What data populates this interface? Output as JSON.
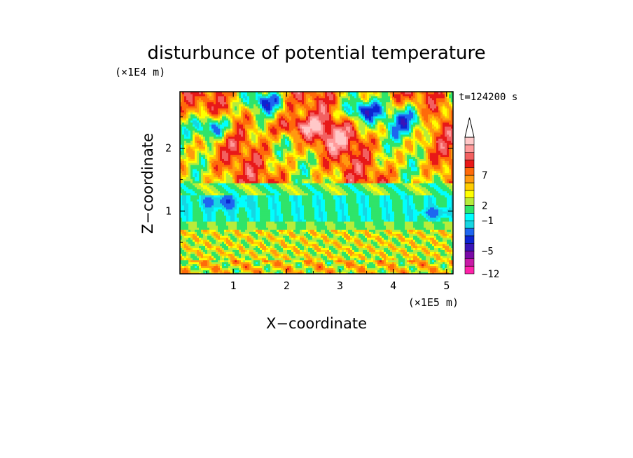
{
  "chart_data": {
    "type": "heatmap",
    "title": "disturbunce of potential temperature",
    "time_label": "t=124200 s",
    "xlabel": "X−coordinate",
    "ylabel": "Z−coordinate",
    "x_scale_label": "(×1E5 m)",
    "y_scale_label": "(×1E4 m)",
    "xlim": [
      0,
      5.12
    ],
    "ylim": [
      0,
      2.9
    ],
    "x_ticks": [
      1,
      2,
      3,
      4,
      5
    ],
    "x_tick_labels": [
      "1",
      "2",
      "3",
      "4",
      "5"
    ],
    "y_ticks": [
      1,
      2
    ],
    "y_tick_labels": [
      "1",
      "2"
    ],
    "colorbar": {
      "colors": [
        "#ff22aa",
        "#c81aa6",
        "#7a0aa6",
        "#3a14b8",
        "#0c24d2",
        "#1e66f0",
        "#16d6e2",
        "#00ffff",
        "#2fe46a",
        "#b8ec3a",
        "#ffff00",
        "#ffcc00",
        "#ff9a10",
        "#ff6a0a",
        "#e81818",
        "#f26060",
        "#ff9a9a",
        "#ffc8c8"
      ],
      "labels": [
        {
          "level": 0,
          "text": "−12"
        },
        {
          "level": 3,
          "text": "−5"
        },
        {
          "level": 7,
          "text": "−1"
        },
        {
          "level": 9,
          "text": "2"
        },
        {
          "level": 13,
          "text": "7"
        }
      ],
      "extend": "max"
    },
    "field_description_bands": [
      {
        "z_range": [
          0,
          0.75
        ],
        "dominant_value": 1
      },
      {
        "z_range": [
          0.75,
          1.3
        ],
        "dominant_value": -1
      },
      {
        "z_range": [
          1.3,
          2.9
        ],
        "dominant_value": 3
      }
    ]
  }
}
